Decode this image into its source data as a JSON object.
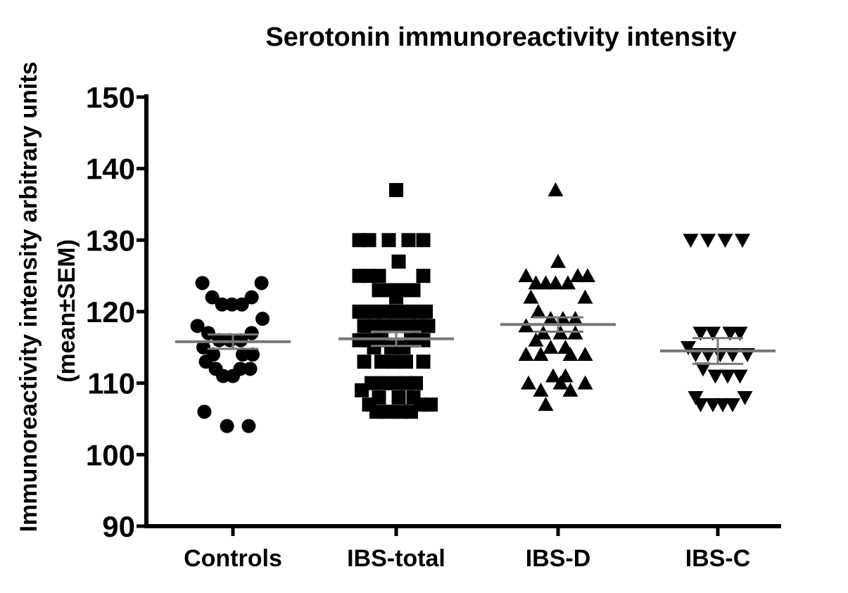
{
  "chart_data": {
    "type": "scatter",
    "title": "Serotonin immunoreactivity intensity",
    "ylabel": "Immunoreactivity intensity arbitrary units",
    "ylabel_sub": "(mean±SEM)",
    "xlabel": "",
    "ylim": [
      90,
      150
    ],
    "yticks": [
      90,
      100,
      110,
      120,
      130,
      140,
      150
    ],
    "ytick_labels": [
      "90",
      "100",
      "110",
      "120",
      "130",
      "140",
      "150"
    ],
    "grid": false,
    "categories": [
      "Controls",
      "IBS-total",
      "IBS-D",
      "IBS-C"
    ],
    "series": [
      {
        "category": "Controls",
        "marker": "circle",
        "mean": 115.8,
        "sem": 1.0,
        "points": [
          {
            "dx": -0.62,
            "y": 124
          },
          {
            "dx": -0.42,
            "y": 122
          },
          {
            "dx": -0.22,
            "y": 121
          },
          {
            "dx": -0.02,
            "y": 121
          },
          {
            "dx": 0.18,
            "y": 121
          },
          {
            "dx": 0.38,
            "y": 122
          },
          {
            "dx": 0.58,
            "y": 124
          },
          {
            "dx": -0.72,
            "y": 118
          },
          {
            "dx": -0.5,
            "y": 117
          },
          {
            "dx": -0.28,
            "y": 116
          },
          {
            "dx": -0.06,
            "y": 116
          },
          {
            "dx": 0.16,
            "y": 116
          },
          {
            "dx": 0.38,
            "y": 117
          },
          {
            "dx": 0.6,
            "y": 119
          },
          {
            "dx": -0.6,
            "y": 115
          },
          {
            "dx": -0.4,
            "y": 114
          },
          {
            "dx": 0.2,
            "y": 114
          },
          {
            "dx": 0.4,
            "y": 114
          },
          {
            "dx": -0.55,
            "y": 113
          },
          {
            "dx": -0.35,
            "y": 112
          },
          {
            "dx": 0.15,
            "y": 112
          },
          {
            "dx": 0.35,
            "y": 112
          },
          {
            "dx": -0.2,
            "y": 111
          },
          {
            "dx": 0.0,
            "y": 111
          },
          {
            "dx": -0.58,
            "y": 106
          },
          {
            "dx": -0.12,
            "y": 104
          },
          {
            "dx": 0.32,
            "y": 104
          }
        ]
      },
      {
        "category": "IBS-total",
        "marker": "square",
        "mean": 116.2,
        "sem": 1.0,
        "points": [
          {
            "dx": 0.0,
            "y": 137
          },
          {
            "dx": -0.75,
            "y": 130
          },
          {
            "dx": -0.55,
            "y": 130
          },
          {
            "dx": -0.15,
            "y": 130
          },
          {
            "dx": 0.25,
            "y": 130
          },
          {
            "dx": 0.55,
            "y": 130
          },
          {
            "dx": 0.05,
            "y": 127
          },
          {
            "dx": -0.75,
            "y": 125
          },
          {
            "dx": -0.55,
            "y": 125
          },
          {
            "dx": -0.35,
            "y": 125
          },
          {
            "dx": 0.55,
            "y": 125
          },
          {
            "dx": -0.35,
            "y": 123
          },
          {
            "dx": -0.1,
            "y": 123
          },
          {
            "dx": 0.15,
            "y": 123
          },
          {
            "dx": 0.35,
            "y": 123
          },
          {
            "dx": 0.0,
            "y": 122
          },
          {
            "dx": -0.75,
            "y": 120
          },
          {
            "dx": -0.55,
            "y": 120
          },
          {
            "dx": -0.35,
            "y": 120
          },
          {
            "dx": -0.15,
            "y": 120
          },
          {
            "dx": 0.1,
            "y": 120
          },
          {
            "dx": 0.35,
            "y": 120
          },
          {
            "dx": 0.6,
            "y": 120
          },
          {
            "dx": -0.65,
            "y": 118
          },
          {
            "dx": -0.45,
            "y": 118
          },
          {
            "dx": -0.25,
            "y": 118
          },
          {
            "dx": 0.0,
            "y": 118
          },
          {
            "dx": 0.25,
            "y": 118
          },
          {
            "dx": 0.45,
            "y": 118
          },
          {
            "dx": 0.65,
            "y": 118
          },
          {
            "dx": -0.75,
            "y": 116
          },
          {
            "dx": -0.55,
            "y": 116
          },
          {
            "dx": -0.3,
            "y": 116
          },
          {
            "dx": 0.3,
            "y": 116
          },
          {
            "dx": 0.55,
            "y": 116
          },
          {
            "dx": -0.45,
            "y": 115
          },
          {
            "dx": -0.1,
            "y": 115
          },
          {
            "dx": 0.15,
            "y": 115
          },
          {
            "dx": -0.65,
            "y": 113
          },
          {
            "dx": -0.3,
            "y": 113
          },
          {
            "dx": -0.05,
            "y": 113
          },
          {
            "dx": 0.2,
            "y": 113
          },
          {
            "dx": 0.55,
            "y": 113
          },
          {
            "dx": -0.5,
            "y": 110
          },
          {
            "dx": -0.25,
            "y": 110
          },
          {
            "dx": 0.0,
            "y": 110
          },
          {
            "dx": 0.2,
            "y": 110
          },
          {
            "dx": 0.4,
            "y": 110
          },
          {
            "dx": -0.7,
            "y": 109
          },
          {
            "dx": -0.35,
            "y": 108
          },
          {
            "dx": 0.05,
            "y": 108
          },
          {
            "dx": 0.35,
            "y": 108
          },
          {
            "dx": -0.55,
            "y": 107
          },
          {
            "dx": 0.5,
            "y": 107
          },
          {
            "dx": 0.7,
            "y": 107
          },
          {
            "dx": -0.4,
            "y": 106
          },
          {
            "dx": -0.15,
            "y": 106
          },
          {
            "dx": 0.1,
            "y": 106
          },
          {
            "dx": 0.3,
            "y": 106
          }
        ]
      },
      {
        "category": "IBS-D",
        "marker": "triangle-up",
        "mean": 118.2,
        "sem": 1.0,
        "points": [
          {
            "dx": -0.05,
            "y": 137
          },
          {
            "dx": 0.0,
            "y": 127
          },
          {
            "dx": -0.65,
            "y": 125
          },
          {
            "dx": 0.4,
            "y": 125
          },
          {
            "dx": 0.6,
            "y": 125
          },
          {
            "dx": -0.45,
            "y": 124
          },
          {
            "dx": -0.25,
            "y": 124
          },
          {
            "dx": -0.05,
            "y": 124
          },
          {
            "dx": 0.2,
            "y": 124
          },
          {
            "dx": -0.55,
            "y": 122
          },
          {
            "dx": 0.55,
            "y": 122
          },
          {
            "dx": -0.4,
            "y": 120
          },
          {
            "dx": -0.15,
            "y": 119
          },
          {
            "dx": 0.1,
            "y": 119
          },
          {
            "dx": 0.35,
            "y": 119
          },
          {
            "dx": -0.65,
            "y": 118
          },
          {
            "dx": -0.3,
            "y": 117
          },
          {
            "dx": 0.05,
            "y": 117
          },
          {
            "dx": 0.35,
            "y": 117
          },
          {
            "dx": -0.45,
            "y": 116
          },
          {
            "dx": -0.15,
            "y": 115
          },
          {
            "dx": 0.15,
            "y": 115
          },
          {
            "dx": -0.65,
            "y": 114
          },
          {
            "dx": -0.35,
            "y": 114
          },
          {
            "dx": 0.25,
            "y": 114
          },
          {
            "dx": 0.55,
            "y": 114
          },
          {
            "dx": -0.1,
            "y": 111
          },
          {
            "dx": 0.15,
            "y": 111
          },
          {
            "dx": -0.6,
            "y": 110
          },
          {
            "dx": 0.05,
            "y": 110
          },
          {
            "dx": 0.55,
            "y": 110
          },
          {
            "dx": -0.35,
            "y": 109
          },
          {
            "dx": 0.25,
            "y": 109
          },
          {
            "dx": -0.25,
            "y": 107
          }
        ]
      },
      {
        "category": "IBS-C",
        "marker": "triangle-down",
        "mean": 114.5,
        "sem": 1.8,
        "points": [
          {
            "dx": -0.55,
            "y": 130
          },
          {
            "dx": -0.2,
            "y": 130
          },
          {
            "dx": 0.15,
            "y": 130
          },
          {
            "dx": 0.5,
            "y": 130
          },
          {
            "dx": -0.35,
            "y": 117
          },
          {
            "dx": -0.1,
            "y": 117
          },
          {
            "dx": 0.25,
            "y": 117
          },
          {
            "dx": 0.45,
            "y": 117
          },
          {
            "dx": -0.6,
            "y": 115
          },
          {
            "dx": -0.45,
            "y": 114
          },
          {
            "dx": -0.2,
            "y": 114
          },
          {
            "dx": 0.05,
            "y": 114
          },
          {
            "dx": 0.3,
            "y": 114
          },
          {
            "dx": 0.6,
            "y": 114
          },
          {
            "dx": -0.3,
            "y": 112
          },
          {
            "dx": -0.05,
            "y": 111
          },
          {
            "dx": 0.2,
            "y": 111
          },
          {
            "dx": 0.45,
            "y": 111
          },
          {
            "dx": -0.45,
            "y": 108
          },
          {
            "dx": 0.55,
            "y": 108
          },
          {
            "dx": -0.35,
            "y": 107
          },
          {
            "dx": -0.1,
            "y": 107
          },
          {
            "dx": 0.1,
            "y": 107
          },
          {
            "dx": 0.3,
            "y": 107
          }
        ]
      }
    ]
  }
}
